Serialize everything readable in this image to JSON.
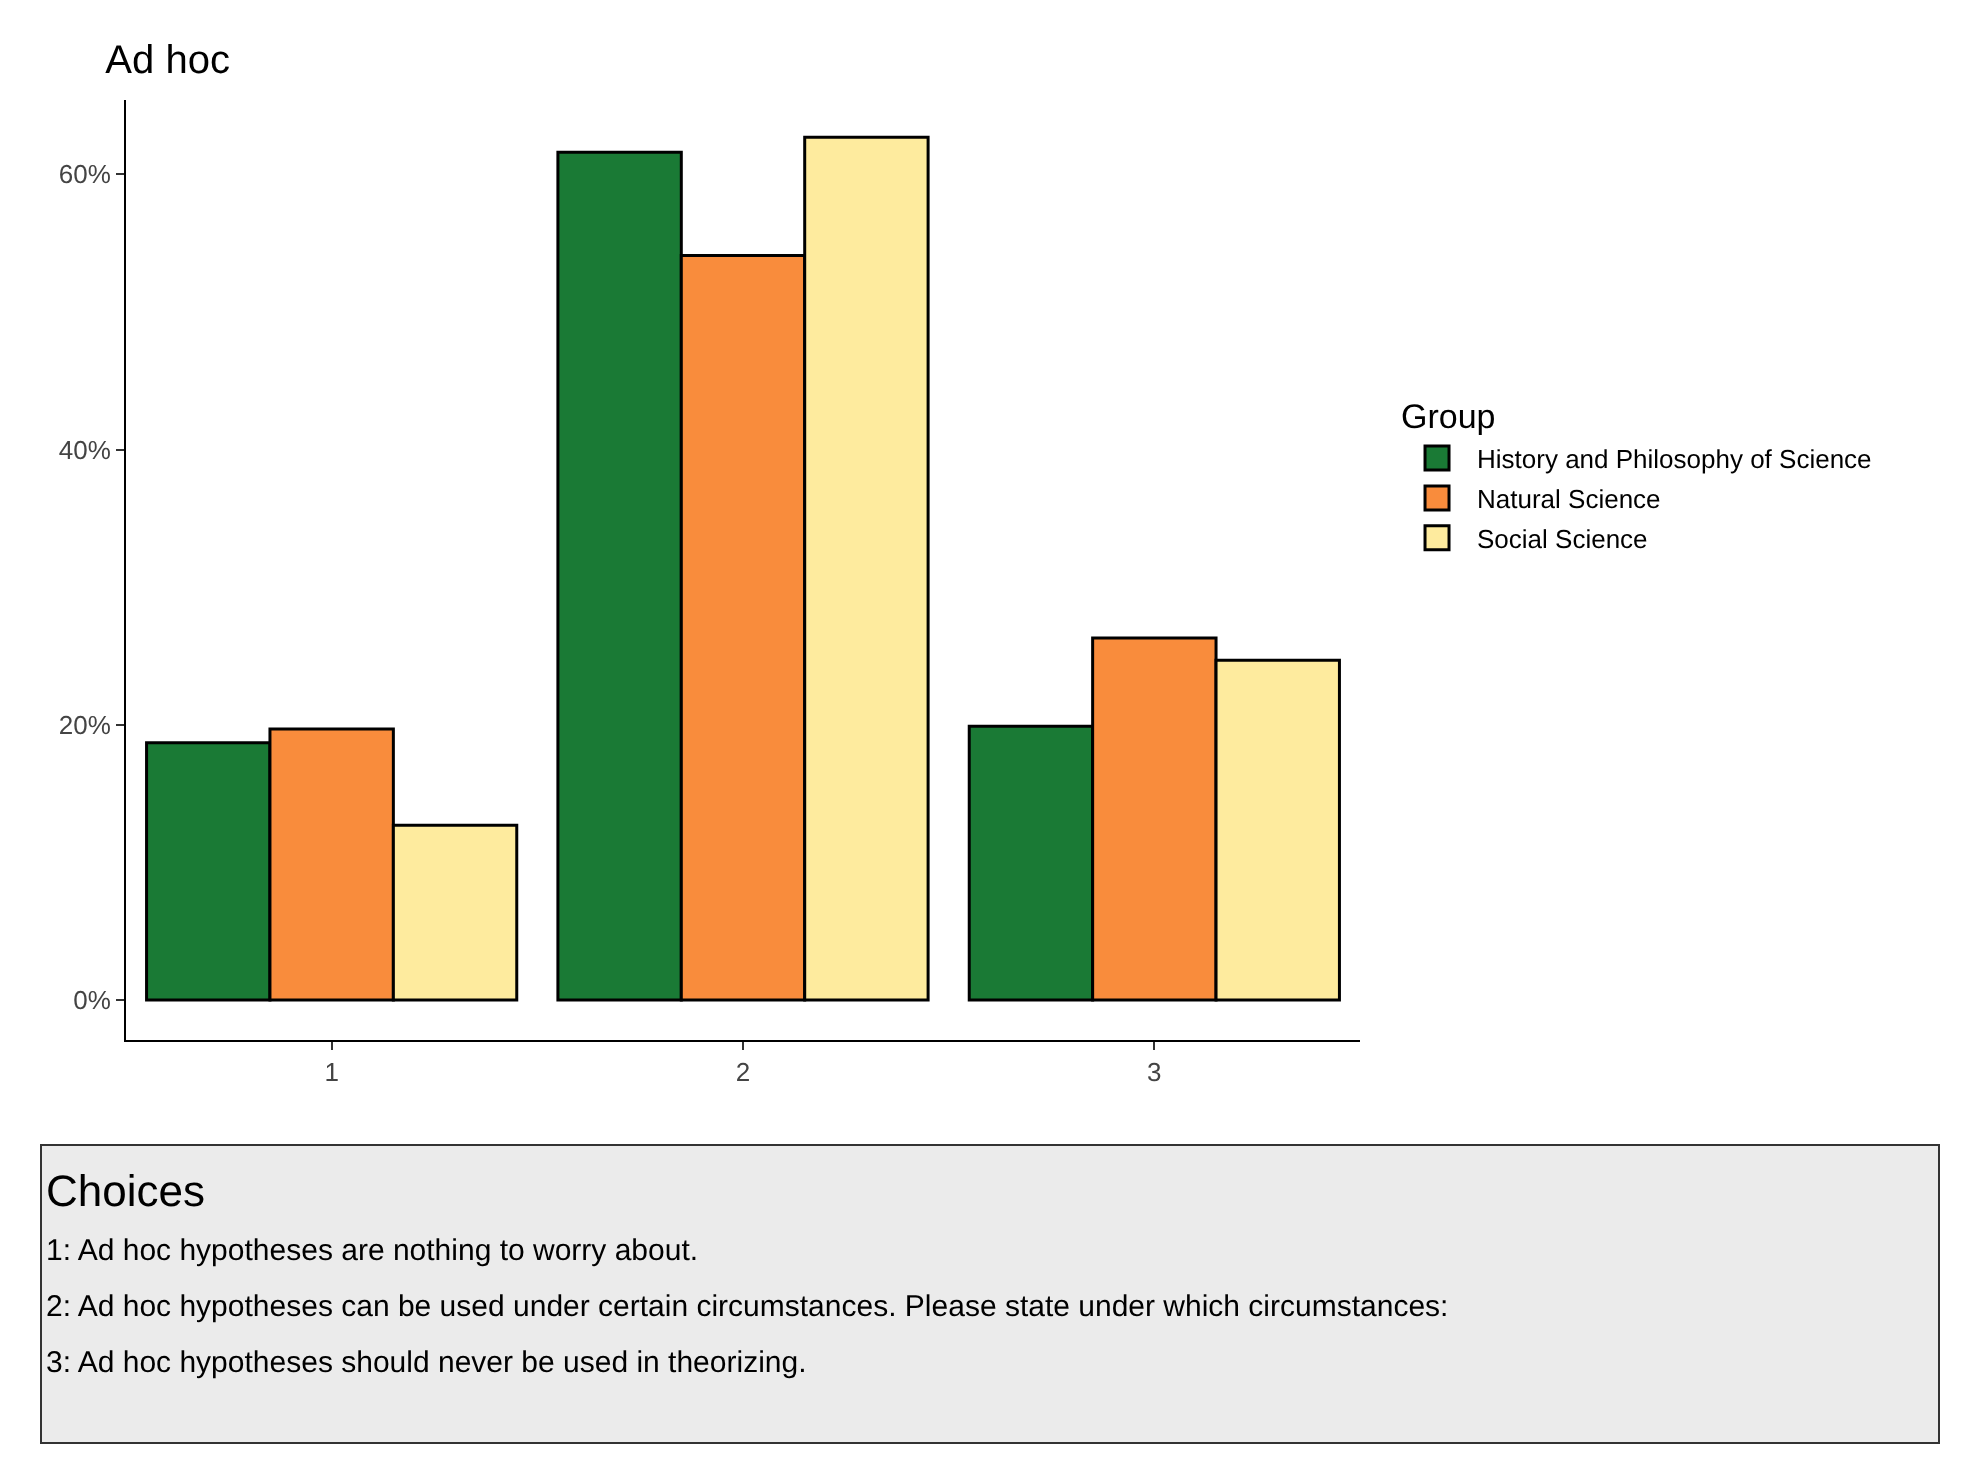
{
  "chart_data": {
    "type": "bar",
    "title": "Ad hoc",
    "legend_title": "Group",
    "legend": "right",
    "categories": [
      "1",
      "2",
      "3"
    ],
    "series": [
      {
        "name": "History and Philosophy of Science",
        "color": "#1a7a35",
        "values": [
          18.7,
          61.6,
          19.9
        ]
      },
      {
        "name": "Natural Science",
        "color": "#f98c3c",
        "values": [
          19.7,
          54.1,
          26.3
        ]
      },
      {
        "name": "Social Science",
        "color": "#feeb9e",
        "values": [
          12.7,
          62.7,
          24.7
        ]
      }
    ],
    "ylim": [
      -2.9,
      65.4
    ],
    "yticks": [
      {
        "value": 0,
        "label": "0%"
      },
      {
        "value": 20,
        "label": "20%"
      },
      {
        "value": 40,
        "label": "40%"
      },
      {
        "value": 60,
        "label": "60%"
      }
    ],
    "annotations": [
      "Choices",
      "1: Ad hoc hypotheses are nothing to worry about.",
      "2: Ad hoc hypotheses can be used under certain circumstances. Please state under which circumstances:",
      "3: Ad hoc hypotheses should never be used in theorizing."
    ]
  }
}
